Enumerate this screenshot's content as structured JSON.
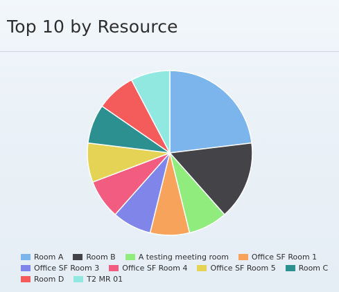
{
  "header": {
    "title": "Top 10 by Resource"
  },
  "chart_data": {
    "type": "pie",
    "title": "Top 10 by Resource",
    "legend_placement": "bottom",
    "slices": [
      {
        "label": "Room A",
        "value": 24,
        "color": "#7cb5ec"
      },
      {
        "label": "Room B",
        "value": 16,
        "color": "#434348"
      },
      {
        "label": "A testing meeting room",
        "value": 8,
        "color": "#90ed7d"
      },
      {
        "label": "Office SF Room 1",
        "value": 8,
        "color": "#f7a35c"
      },
      {
        "label": "Office SF Room 3",
        "value": 8,
        "color": "#8085e9"
      },
      {
        "label": "Office SF Room 4",
        "value": 8,
        "color": "#f15c80"
      },
      {
        "label": "Office SF Room 5",
        "value": 8,
        "color": "#e4d354"
      },
      {
        "label": "Room C",
        "value": 8,
        "color": "#2b908f"
      },
      {
        "label": "Room D",
        "value": 8,
        "color": "#f45b5b"
      },
      {
        "label": "T2 MR 01",
        "value": 8,
        "color": "#91e8e1"
      }
    ]
  }
}
